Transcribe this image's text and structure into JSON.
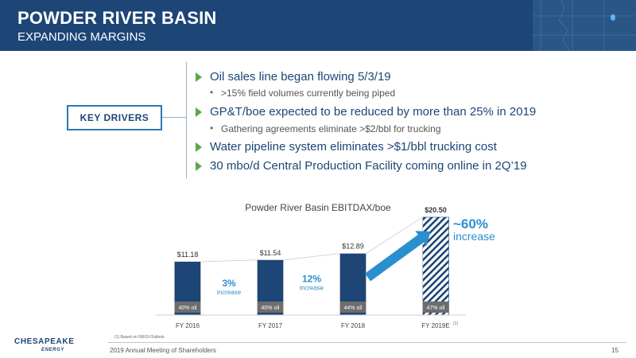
{
  "header": {
    "title": "POWDER RIVER BASIN",
    "subtitle": "EXPANDING MARGINS"
  },
  "key_drivers": {
    "label": "KEY DRIVERS",
    "bullets": [
      {
        "text": "Oil sales line began flowing 5/3/19",
        "sub": ">15% field volumes currently being piped"
      },
      {
        "text": "GP&T/boe expected to be reduced by more than 25% in 2019",
        "sub": "Gathering agreements eliminate >$2/bbl for trucking"
      },
      {
        "text": "Water pipeline system eliminates >$1/bbl trucking cost"
      },
      {
        "text": "30 mbo/d Central Production Facility coming online in 2Q’19"
      }
    ]
  },
  "chart_data": {
    "type": "bar",
    "title": "Powder River Basin EBITDAX/boe",
    "categories": [
      "FY 2016",
      "FY 2017",
      "FY 2018",
      "FY 2019E"
    ],
    "category_superscripts": [
      "",
      "",
      "",
      "(1)"
    ],
    "values": [
      11.18,
      11.54,
      12.89,
      20.5
    ],
    "value_labels": [
      "$11.18",
      "$11.54",
      "$12.89",
      "$20.50"
    ],
    "oil_labels": [
      "40% oil",
      "40% oil",
      "44% oil",
      "47% oil"
    ],
    "projected_index": 3,
    "increases": [
      {
        "pct": "3%",
        "word": "increase"
      },
      {
        "pct": "12%",
        "word": "increase"
      }
    ],
    "callout": {
      "pct": "~60%",
      "word": "increase"
    },
    "ylim": [
      0,
      22
    ],
    "colors": {
      "bar": "#1d4576",
      "accent": "#2a8fcf",
      "green": "#5aa844"
    }
  },
  "footer": {
    "footnote": "(1) Based on 5/8/19 Outlook",
    "meeting": "2019 Annual Meeting of Shareholders",
    "page": "15",
    "logo_main": "CHESAPEAKE",
    "logo_sub": "ENERGY"
  }
}
